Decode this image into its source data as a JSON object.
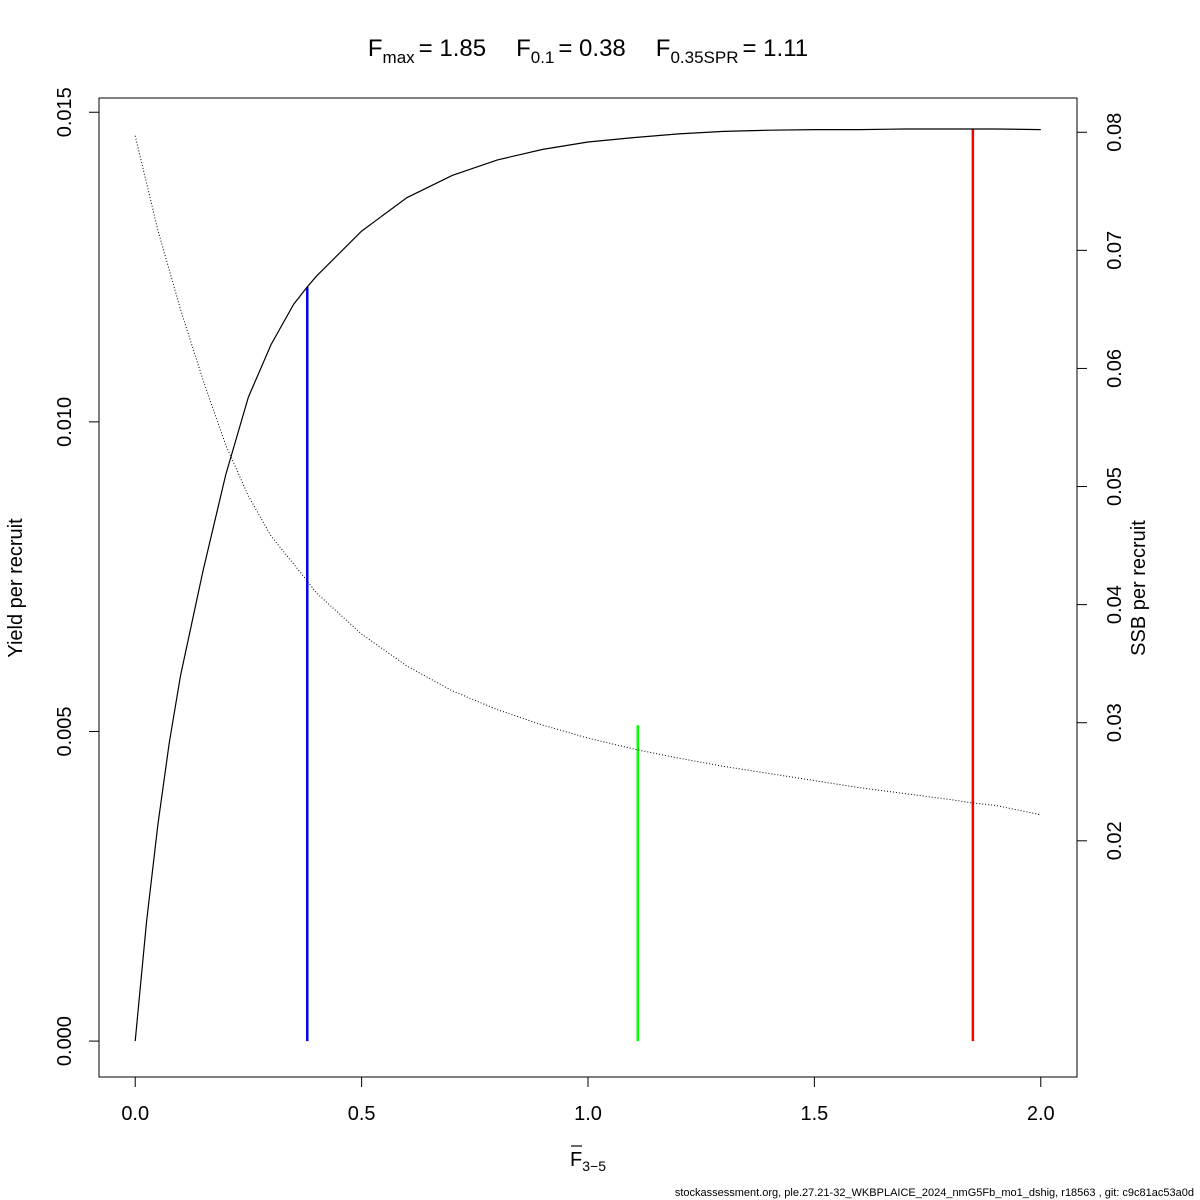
{
  "chart_data": {
    "type": "line",
    "title": {
      "parts": [
        {
          "base": "F",
          "sub": "max",
          "value": "= 1.85"
        },
        {
          "base": "F",
          "sub": "0.1",
          "value": "= 0.38"
        },
        {
          "base": "F",
          "sub": "0.35SPR",
          "value": "= 1.11"
        }
      ]
    },
    "xlabel": {
      "base": "F",
      "sub": "3−5",
      "overline": true
    },
    "ylabel_left": "Yield per recruit",
    "ylabel_right": "SSB per recruit",
    "xlim": [
      -0.08,
      2.08
    ],
    "ylim_left": [
      -0.00058,
      0.01523
    ],
    "ylim_right": [
      0.0,
      0.0829
    ],
    "x_ticks": [
      {
        "value": 0.0,
        "label": "0.0"
      },
      {
        "value": 0.5,
        "label": "0.5"
      },
      {
        "value": 1.0,
        "label": "1.0"
      },
      {
        "value": 1.5,
        "label": "1.5"
      },
      {
        "value": 2.0,
        "label": "2.0"
      }
    ],
    "y_left_ticks": [
      {
        "value": 0.0,
        "label": "0.000"
      },
      {
        "value": 0.005,
        "label": "0.005"
      },
      {
        "value": 0.01,
        "label": "0.010"
      },
      {
        "value": 0.015,
        "label": "0.015"
      }
    ],
    "y_right_ticks": [
      {
        "value": 0.02,
        "label": "0.02"
      },
      {
        "value": 0.03,
        "label": "0.03"
      },
      {
        "value": 0.04,
        "label": "0.04"
      },
      {
        "value": 0.05,
        "label": "0.05"
      },
      {
        "value": 0.06,
        "label": "0.06"
      },
      {
        "value": 0.07,
        "label": "0.07"
      },
      {
        "value": 0.08,
        "label": "0.08"
      }
    ],
    "series": [
      {
        "axis": "left",
        "style": "solid",
        "color": "#000000",
        "x": [
          0.0,
          0.025,
          0.05,
          0.075,
          0.1,
          0.15,
          0.2,
          0.25,
          0.3,
          0.35,
          0.38,
          0.4,
          0.5,
          0.6,
          0.7,
          0.8,
          0.9,
          1.0,
          1.1,
          1.2,
          1.3,
          1.4,
          1.5,
          1.6,
          1.7,
          1.8,
          1.85,
          1.9,
          2.0
        ],
        "values": [
          0.0,
          0.00192,
          0.0035,
          0.00481,
          0.0059,
          0.0076,
          0.00915,
          0.0104,
          0.01125,
          0.0119,
          0.01218,
          0.01235,
          0.01308,
          0.01362,
          0.01398,
          0.01423,
          0.0144,
          0.01452,
          0.01459,
          0.01465,
          0.01469,
          0.01471,
          0.01472,
          0.01472,
          0.01473,
          0.01473,
          0.01473,
          0.01473,
          0.01472
        ]
      },
      {
        "axis": "right",
        "style": "dotted",
        "color": "#000000",
        "x": [
          0.0,
          0.05,
          0.1,
          0.15,
          0.2,
          0.25,
          0.3,
          0.38,
          0.4,
          0.5,
          0.6,
          0.7,
          0.8,
          0.9,
          1.0,
          1.11,
          1.2,
          1.3,
          1.4,
          1.5,
          1.6,
          1.7,
          1.8,
          1.85,
          1.9,
          2.0
        ],
        "values": [
          0.0797,
          0.0717,
          0.065,
          0.059,
          0.0535,
          0.0492,
          0.0458,
          0.042,
          0.041,
          0.0375,
          0.0348,
          0.0327,
          0.0311,
          0.0298,
          0.0287,
          0.0277,
          0.027,
          0.0263,
          0.0257,
          0.0251,
          0.0245,
          0.024,
          0.0235,
          0.0232,
          0.023,
          0.0222
        ]
      }
    ],
    "reference_lines": [
      {
        "x": 0.38,
        "y_left": 0.01218,
        "color": "#0000ff"
      },
      {
        "x": 1.11,
        "y_left": 0.0051,
        "color": "#00ff00"
      },
      {
        "x": 1.85,
        "y_left": 0.01473,
        "color": "#ff0000"
      }
    ],
    "footer": "stockassessment.org, ple.27.21-32_WKBPLAICE_2024_nmG5Fb_mo1_dshig, r18563 , git: c9c81ac53a0d"
  }
}
